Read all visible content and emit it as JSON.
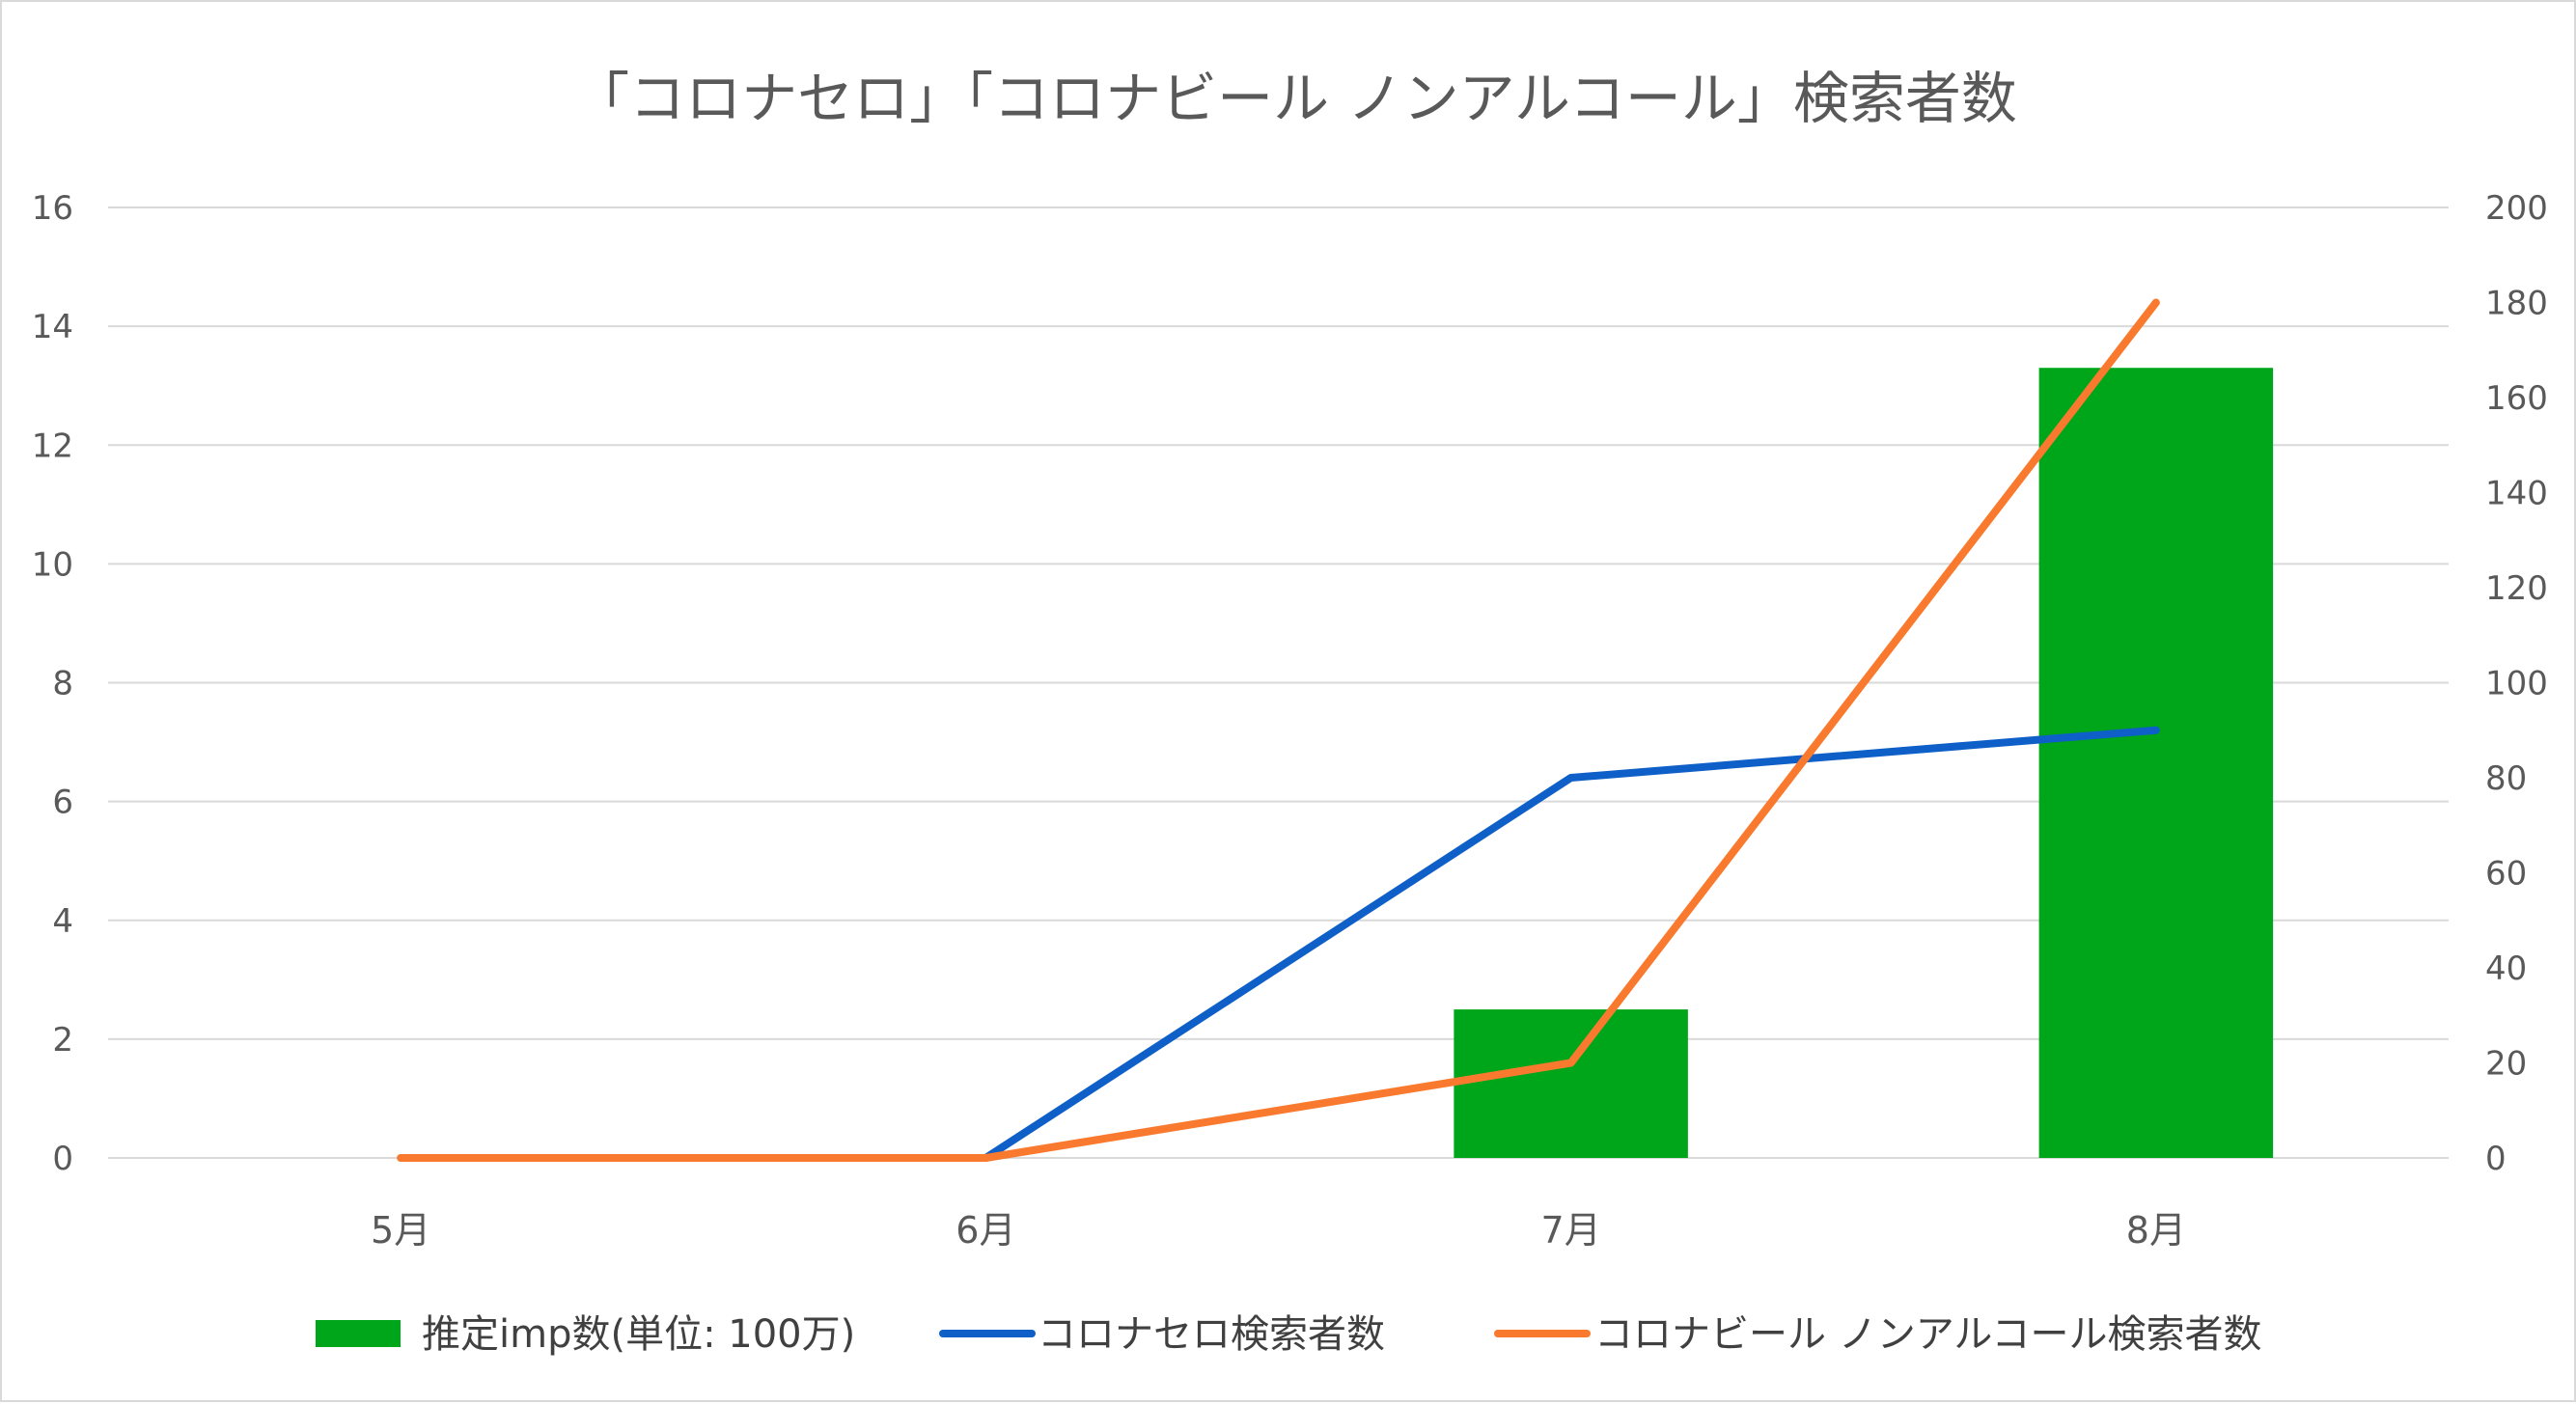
{
  "chart_data": {
    "type": "bar",
    "title": "「コロナセロ」「コロナビール ノンアルコール」検索者数",
    "categories": [
      "5月",
      "6月",
      "7月",
      "8月"
    ],
    "series": [
      {
        "name": "推定imp数(単位: 100万)",
        "type": "bar",
        "axis": "left",
        "color": "#00A619",
        "values": [
          0,
          0,
          2.5,
          13.3
        ]
      },
      {
        "name": "コロナセロ検索者数",
        "type": "line",
        "axis": "right",
        "color": "#0F5FC8",
        "values": [
          null,
          0,
          80,
          90
        ]
      },
      {
        "name": "コロナビール ノンアルコール検索者数",
        "type": "line",
        "axis": "right",
        "color": "#F97A2F",
        "values": [
          0,
          0,
          20,
          180
        ]
      }
    ],
    "ylim_left": [
      0,
      16
    ],
    "yticks_left": [
      "0",
      "2",
      "4",
      "6",
      "8",
      "10",
      "12",
      "14",
      "16"
    ],
    "ylim_right": [
      0,
      200
    ],
    "yticks_right": [
      "0",
      "20",
      "40",
      "60",
      "80",
      "100",
      "120",
      "140",
      "160",
      "180",
      "200"
    ],
    "grid": true,
    "legend_position": "bottom",
    "gridline_color": "#d9d9d9"
  }
}
